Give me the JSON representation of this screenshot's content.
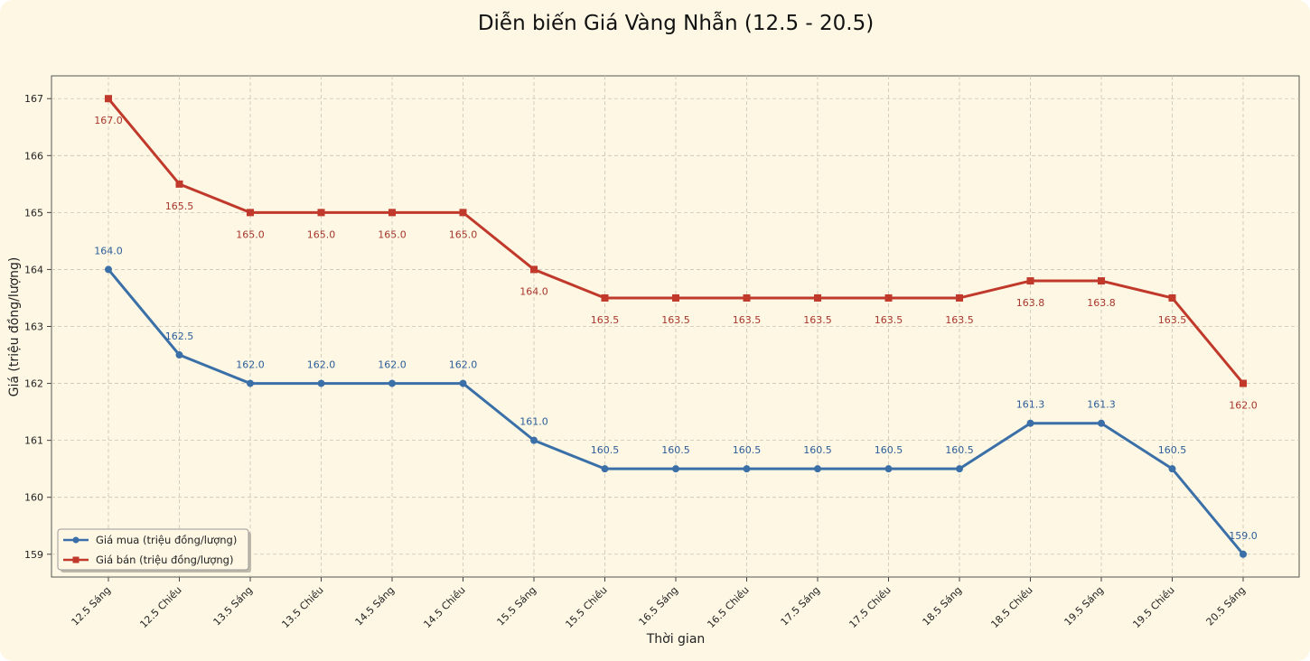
{
  "chart_data": {
    "type": "line",
    "title": "Diễn biến Giá Vàng Nhẫn (12.5 - 20.5)",
    "xlabel": "Thời gian",
    "ylabel": "Giá (triệu đồng/lượng)",
    "ylim": [
      158.6,
      167.4
    ],
    "yticks": [
      159,
      160,
      161,
      162,
      163,
      164,
      165,
      166,
      167
    ],
    "grid": true,
    "legend_position": "bottom-left",
    "categories": [
      "12.5 Sáng",
      "12.5 Chiều",
      "13.5 Sáng",
      "13.5 Chiều",
      "14.5 Sáng",
      "14.5 Chiều",
      "15.5 Sáng",
      "15.5 Chiều",
      "16.5 Sáng",
      "16.5 Chiều",
      "17.5 Sáng",
      "17.5 Chiều",
      "18.5 Sáng",
      "18.5 Chiều",
      "19.5 Sáng",
      "19.5 Chiều",
      "20.5 Sáng"
    ],
    "series": [
      {
        "name": "Giá mua (triệu đồng/lượng)",
        "color": "#3a6fa8",
        "marker": "circle",
        "values": [
          164.0,
          162.5,
          162.0,
          162.0,
          162.0,
          162.0,
          161.0,
          160.5,
          160.5,
          160.5,
          160.5,
          160.5,
          160.5,
          161.3,
          161.3,
          160.5,
          159.0
        ],
        "labels": [
          "164.0",
          "162.5",
          "162.0",
          "162.0",
          "162.0",
          "162.0",
          "161.0",
          "160.5",
          "160.5",
          "160.5",
          "160.5",
          "160.5",
          "160.5",
          "161.3",
          "161.3",
          "160.5",
          "159.0"
        ]
      },
      {
        "name": "Giá bán (triệu đồng/lượng)",
        "color": "#c0392b",
        "marker": "square",
        "values": [
          167.0,
          165.5,
          165.0,
          165.0,
          165.0,
          165.0,
          164.0,
          163.5,
          163.5,
          163.5,
          163.5,
          163.5,
          163.5,
          163.8,
          163.8,
          163.5,
          162.0
        ],
        "labels": [
          "167.0",
          "165.5",
          "165.0",
          "165.0",
          "165.0",
          "165.0",
          "164.0",
          "163.5",
          "163.5",
          "163.5",
          "163.5",
          "163.5",
          "163.5",
          "163.8",
          "163.8",
          "163.5",
          "162.0"
        ]
      }
    ]
  }
}
